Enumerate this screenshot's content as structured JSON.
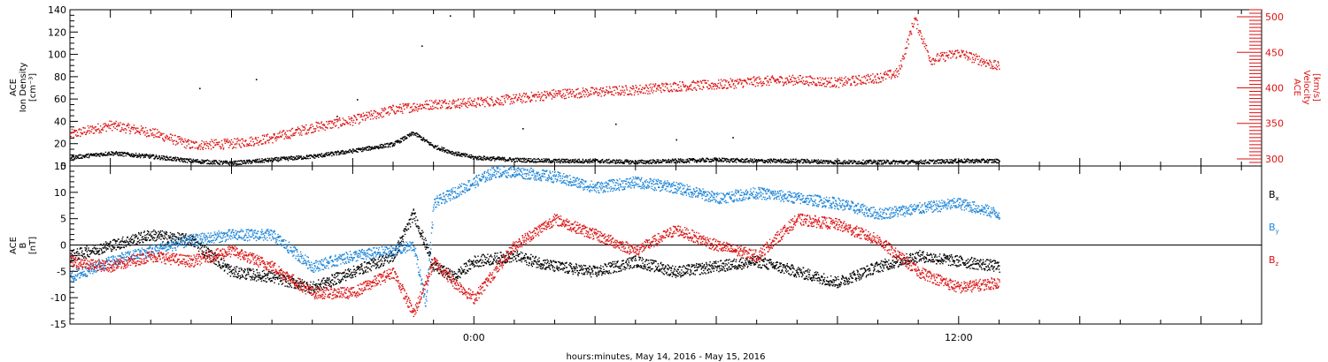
{
  "chart_data": [
    {
      "type": "scatter",
      "title": "",
      "x_axis": {
        "label": "hours:minutes, May 14, 2016 - May 15, 2016",
        "range_hours": [
          -10,
          19.5
        ],
        "tick_labels": [
          {
            "hour": 0,
            "label": "0:00"
          },
          {
            "hour": 12,
            "label": "12:00"
          }
        ]
      },
      "left_axis": {
        "label_lines": [
          "ACE",
          "Ion Density",
          "[cm⁻³]"
        ],
        "range": [
          0,
          140
        ],
        "tick_values": [
          0,
          20,
          40,
          60,
          80,
          100,
          120,
          140
        ],
        "color": "#000000"
      },
      "right_axis": {
        "label_lines": [
          "ACE",
          "Velocity",
          "[km/s]"
        ],
        "range": [
          290,
          510
        ],
        "tick_values": [
          300,
          350,
          400,
          450,
          500
        ],
        "color": "#dd1111"
      },
      "series": [
        {
          "name": "",
          "axis": "left",
          "color": "#000000",
          "points": [
            [
              -10,
              8
            ],
            [
              -9,
              12
            ],
            [
              -8,
              9
            ],
            [
              -7,
              5
            ],
            [
              -6,
              3
            ],
            [
              -5,
              6
            ],
            [
              -4,
              9
            ],
            [
              -3,
              14
            ],
            [
              -2,
              20
            ],
            [
              -1.5,
              30
            ],
            [
              -1,
              18
            ],
            [
              -0.5,
              12
            ],
            [
              0,
              8
            ],
            [
              1,
              6
            ],
            [
              2,
              5
            ],
            [
              3,
              5
            ],
            [
              4,
              4
            ],
            [
              5,
              5
            ],
            [
              6,
              6
            ],
            [
              7,
              5
            ],
            [
              8,
              5
            ],
            [
              9,
              4
            ],
            [
              10,
              4
            ],
            [
              11,
              4
            ],
            [
              12,
              5
            ],
            [
              13,
              5
            ]
          ],
          "outliers": [
            [
              -6.8,
              70
            ],
            [
              -5.4,
              78
            ],
            [
              -3.4,
              45
            ],
            [
              -2.9,
              60
            ],
            [
              -1.3,
              108
            ],
            [
              -0.6,
              135
            ],
            [
              1.2,
              34
            ],
            [
              3.5,
              38
            ],
            [
              5,
              24
            ],
            [
              6.4,
              26
            ]
          ]
        },
        {
          "name": "",
          "axis": "right",
          "color": "#dd1111",
          "points": [
            [
              -10,
              335
            ],
            [
              -9,
              348
            ],
            [
              -8,
              338
            ],
            [
              -7,
              320
            ],
            [
              -6,
              322
            ],
            [
              -5,
              330
            ],
            [
              -4,
              345
            ],
            [
              -3,
              355
            ],
            [
              -2,
              370
            ],
            [
              -1,
              378
            ],
            [
              0,
              380
            ],
            [
              1,
              385
            ],
            [
              2,
              392
            ],
            [
              3,
              395
            ],
            [
              4,
              398
            ],
            [
              5,
              403
            ],
            [
              6,
              405
            ],
            [
              7,
              410
            ],
            [
              8,
              412
            ],
            [
              9,
              408
            ],
            [
              10,
              415
            ],
            [
              10.5,
              422
            ],
            [
              10.9,
              498
            ],
            [
              11.3,
              440
            ],
            [
              12,
              450
            ],
            [
              13,
              430
            ]
          ]
        }
      ]
    },
    {
      "type": "scatter",
      "title": "",
      "x_axis": {
        "label": "hours:minutes, May 14, 2016 - May 15, 2016",
        "range_hours": [
          -10,
          19.5
        ],
        "tick_labels": [
          {
            "hour": 0,
            "label": "0:00"
          },
          {
            "hour": 12,
            "label": "12:00"
          }
        ]
      },
      "left_axis": {
        "label_lines": [
          "ACE",
          "B",
          "[nT]"
        ],
        "range": [
          -15,
          15
        ],
        "tick_values": [
          -15,
          -10,
          -5,
          0,
          5,
          10,
          15
        ],
        "color": "#000000"
      },
      "zero_line": true,
      "series": [
        {
          "name": "Bx",
          "color": "#000000",
          "points": [
            [
              -10,
              -2
            ],
            [
              -9,
              0
            ],
            [
              -8,
              2
            ],
            [
              -7,
              1
            ],
            [
              -6,
              -5
            ],
            [
              -5,
              -6
            ],
            [
              -4,
              -8
            ],
            [
              -3,
              -5
            ],
            [
              -2,
              -2
            ],
            [
              -1.5,
              6
            ],
            [
              -1,
              -4
            ],
            [
              -0.5,
              -6
            ],
            [
              0,
              -3
            ],
            [
              1,
              -2
            ],
            [
              2,
              -4
            ],
            [
              3,
              -5
            ],
            [
              4,
              -3
            ],
            [
              5,
              -5
            ],
            [
              6,
              -4
            ],
            [
              7,
              -3
            ],
            [
              8,
              -5
            ],
            [
              9,
              -7
            ],
            [
              10,
              -4
            ],
            [
              11,
              -2
            ],
            [
              12,
              -3
            ],
            [
              13,
              -4
            ]
          ]
        },
        {
          "name": "By",
          "color": "#1f86d8",
          "points": [
            [
              -10,
              -6
            ],
            [
              -9,
              -3
            ],
            [
              -8,
              -1
            ],
            [
              -7,
              1
            ],
            [
              -6,
              2
            ],
            [
              -5,
              2
            ],
            [
              -4,
              -4
            ],
            [
              -3,
              -2
            ],
            [
              -2,
              -1
            ],
            [
              -1.5,
              0
            ],
            [
              -1.2,
              -11
            ],
            [
              -1,
              8
            ],
            [
              -0.5,
              10
            ],
            [
              0,
              12
            ],
            [
              0.5,
              14
            ],
            [
              1,
              14
            ],
            [
              2,
              13
            ],
            [
              3,
              11
            ],
            [
              4,
              12
            ],
            [
              5,
              11
            ],
            [
              6,
              9
            ],
            [
              7,
              10
            ],
            [
              8,
              9
            ],
            [
              9,
              8
            ],
            [
              10,
              6
            ],
            [
              11,
              7
            ],
            [
              12,
              8
            ],
            [
              13,
              6
            ]
          ]
        },
        {
          "name": "Bz",
          "color": "#dd1111",
          "points": [
            [
              -10,
              -3
            ],
            [
              -9,
              -4
            ],
            [
              -8,
              -2
            ],
            [
              -7,
              -3
            ],
            [
              -6,
              -1
            ],
            [
              -5,
              -4
            ],
            [
              -4,
              -9
            ],
            [
              -3,
              -9
            ],
            [
              -2,
              -5
            ],
            [
              -1.5,
              -13
            ],
            [
              -1,
              -3
            ],
            [
              -0.5,
              -7
            ],
            [
              0,
              -10
            ],
            [
              1,
              0
            ],
            [
              2,
              5
            ],
            [
              3,
              2
            ],
            [
              4,
              -1
            ],
            [
              5,
              3
            ],
            [
              6,
              0
            ],
            [
              7,
              -2
            ],
            [
              8,
              5
            ],
            [
              9,
              4
            ],
            [
              10,
              1
            ],
            [
              11,
              -5
            ],
            [
              12,
              -8
            ],
            [
              13,
              -7
            ]
          ]
        }
      ],
      "legend_labels": [
        {
          "text": "B",
          "sub": "x",
          "color": "#000000"
        },
        {
          "text": "B",
          "sub": "y",
          "color": "#1f86d8"
        },
        {
          "text": "B",
          "sub": "z",
          "color": "#dd1111"
        }
      ]
    }
  ]
}
